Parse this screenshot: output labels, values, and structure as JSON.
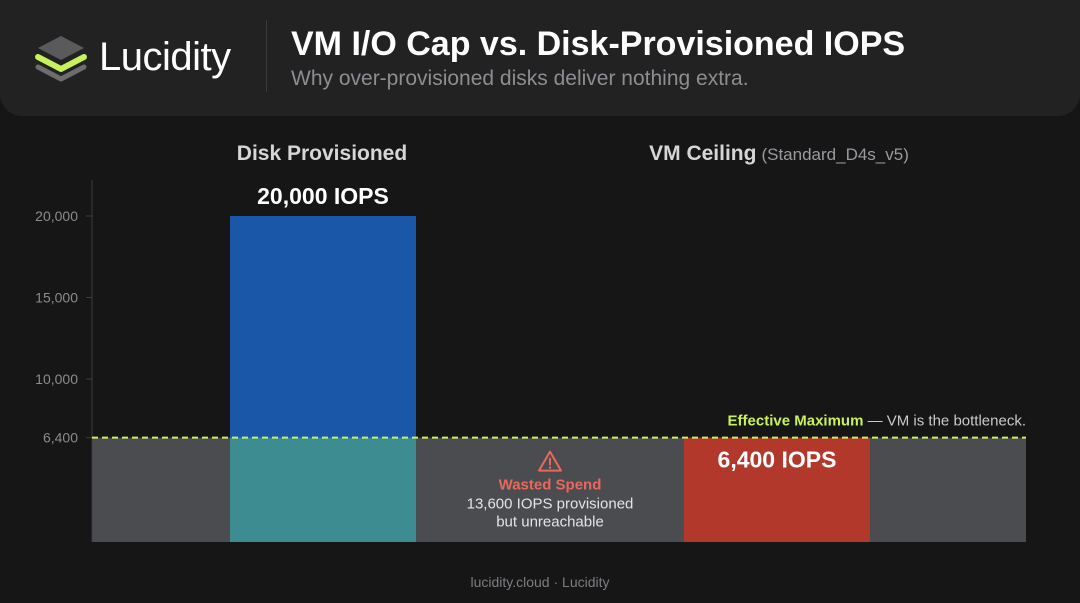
{
  "brand": {
    "name": "Lucidity",
    "icon": "layered-stack-icon",
    "accent_color": "#c7f25b"
  },
  "header": {
    "title": "VM I/O Cap vs. Disk-Provisioned IOPS",
    "subtitle": "Why over-provisioned disks deliver nothing extra."
  },
  "chart_data": {
    "type": "bar",
    "categories": [
      {
        "name": "Disk Provisioned",
        "suffix": ""
      },
      {
        "name": "VM Ceiling",
        "suffix": "(Standard_D4s_v5)"
      }
    ],
    "values": [
      20000,
      6400
    ],
    "value_labels": [
      "20,000 IOPS",
      "6,400 IOPS"
    ],
    "bar_colors": [
      "#1b57a9",
      "#b3382c"
    ],
    "y_ticks": [
      {
        "value": 6400,
        "label": "6,400"
      },
      {
        "value": 10000,
        "label": "10,000"
      },
      {
        "value": 15000,
        "label": "15,000"
      },
      {
        "value": 20000,
        "label": "20,000"
      }
    ],
    "ylim": [
      0,
      20000
    ],
    "reference_line": {
      "value": 6400,
      "label_bold": "Effective Maximum",
      "label_rest": " — VM is the bottleneck.",
      "color": "#c7f25b",
      "style": "dashed"
    },
    "annotation": {
      "icon": "warning-triangle-icon",
      "title": "Wasted Spend",
      "lines": [
        "13,600 IOPS provisioned",
        "but unreachable"
      ],
      "title_color": "#e8685c"
    },
    "colors": {
      "band": "#4b4c50",
      "overlap": "#3d8c92",
      "axis": "#3c3c3f",
      "tick_text": "#8b8b90",
      "grid": false
    }
  },
  "footer": {
    "text": "lucidity.cloud · Lucidity"
  }
}
